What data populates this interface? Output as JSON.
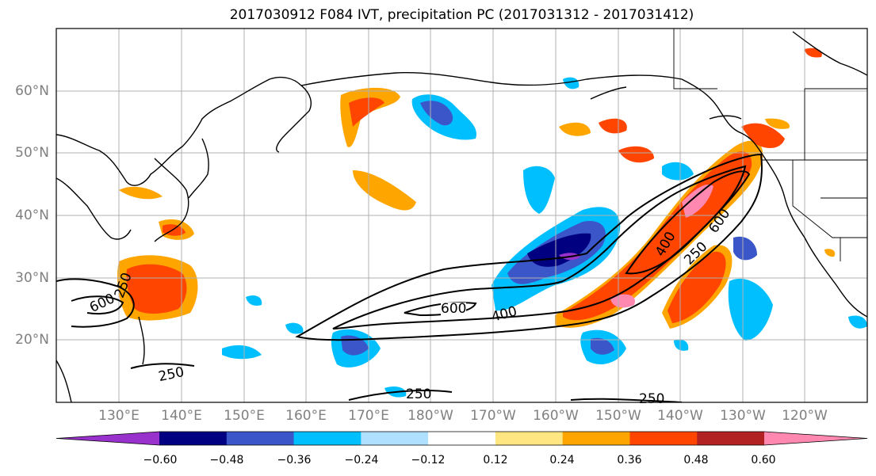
{
  "title": "2017030912 F084 IVT, precipitation PC (2017031312 - 2017031412)",
  "lat_labels": [
    "60°N",
    "50°N",
    "40°N",
    "30°N",
    "20°N"
  ],
  "lon_labels": [
    "130°E",
    "140°E",
    "150°E",
    "160°E",
    "170°E",
    "180°W",
    "170°W",
    "160°W",
    "150°W",
    "140°W",
    "130°W",
    "120°W"
  ],
  "contour_labels": [
    "600",
    "600",
    "400",
    "250",
    "250",
    "250",
    "250",
    "600",
    "400",
    "250"
  ],
  "colorbar": {
    "ticks": [
      "−0.60",
      "−0.48",
      "−0.36",
      "−0.24",
      "−0.12",
      "0.12",
      "0.24",
      "0.36",
      "0.48",
      "0.60"
    ],
    "colors": [
      "#9932cc",
      "#000080",
      "#3a56c8",
      "#00bfff",
      "#b0e0ff",
      "#ffffff",
      "#ffe680",
      "#ffa500",
      "#ff4500",
      "#b22222",
      "#ff88b0"
    ]
  }
}
